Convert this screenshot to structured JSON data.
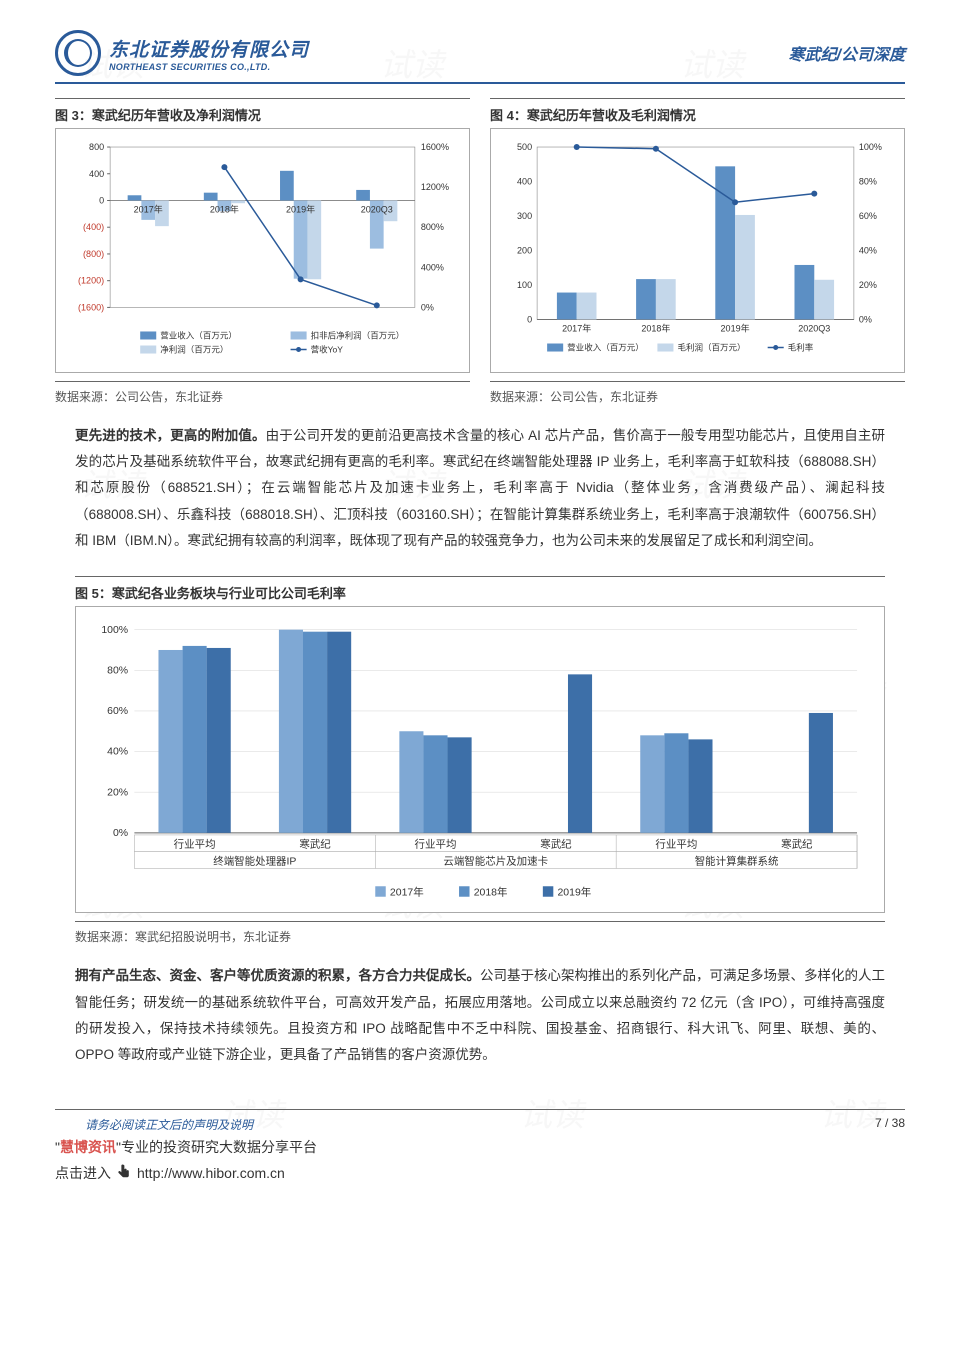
{
  "header": {
    "logo_cn": "东北证券股份有限公司",
    "logo_en": "NORTHEAST SECURITIES CO.,LTD.",
    "doc_title": "寒武纪/公司深度"
  },
  "fig3": {
    "title": "图 3：寒武纪历年营收及净利润情况",
    "categories": [
      "2017年",
      "2018年",
      "2019年",
      "2020Q3"
    ],
    "series_bar1": {
      "name": "营业收入（百万元）",
      "values": [
        78,
        117,
        444,
        158
      ],
      "color": "#5c8fc4"
    },
    "series_bar2": {
      "name": "扣非后净利润（百万元）",
      "values": [
        -290,
        -160,
        -1170,
        -720
      ],
      "color": "#9cbde0"
    },
    "series_bar3": {
      "name": "净利润（百万元）",
      "values": [
        -384,
        -41,
        -1179,
        -310
      ],
      "color": "#c4d7ea"
    },
    "series_line": {
      "name": "营收YoY",
      "values": [
        null,
        1400,
        280,
        20
      ],
      "color": "#2a5a99"
    },
    "y_left": {
      "min": -1600,
      "max": 800,
      "step": 400
    },
    "y_right": {
      "min": 0,
      "max": 1600,
      "step": 400,
      "suffix": "%"
    },
    "source": "数据来源：公司公告，东北证券"
  },
  "fig4": {
    "title": "图 4：寒武纪历年营收及毛利润情况",
    "categories": [
      "2017年",
      "2018年",
      "2019年",
      "2020Q3"
    ],
    "series_bar1": {
      "name": "营业收入（百万元）",
      "values": [
        78,
        117,
        444,
        158
      ],
      "color": "#5c8fc4"
    },
    "series_bar2": {
      "name": "毛利润（百万元）",
      "values": [
        78,
        117,
        303,
        115
      ],
      "color": "#c4d7ea"
    },
    "series_line": {
      "name": "毛利率",
      "values": [
        100,
        99,
        68,
        73
      ],
      "color": "#2a5a99"
    },
    "y_left": {
      "min": 0,
      "max": 500,
      "step": 100
    },
    "y_right": {
      "min": 0,
      "max": 100,
      "step": 20,
      "suffix": "%"
    },
    "source": "数据来源：公司公告，东北证券"
  },
  "para1": {
    "bold": "更先进的技术，更高的附加值。",
    "text": "由于公司开发的更前沿更高技术含量的核心 AI 芯片产品，售价高于一般专用型功能芯片，且使用自主研发的芯片及基础系统软件平台，故寒武纪拥有更高的毛利率。寒武纪在终端智能处理器 IP 业务上，毛利率高于虹软科技（688088.SH）和芯原股份（688521.SH）；在云端智能芯片及加速卡业务上，毛利率高于 Nvidia（整体业务，含消费级产品）、澜起科技（688008.SH）、乐鑫科技（688018.SH）、汇顶科技（603160.SH）；在智能计算集群系统业务上，毛利率高于浪潮软件（600756.SH）和 IBM（IBM.N）。寒武纪拥有较高的利润率，既体现了现有产品的较强竞争力，也为公司未来的发展留足了成长和利润空间。"
  },
  "fig5": {
    "title": "图 5：寒武纪各业务板块与行业可比公司毛利率",
    "groups": [
      "终端智能处理器IP",
      "云端智能芯片及加速卡",
      "智能计算集群系统"
    ],
    "sub_cats": [
      "行业平均",
      "寒武纪"
    ],
    "years": [
      "2017年",
      "2018年",
      "2019年"
    ],
    "colors": [
      "#7fa8d4",
      "#5c8fc4",
      "#3d6fa8"
    ],
    "data": [
      [
        [
          90,
          92,
          91
        ],
        [
          100,
          99,
          99
        ]
      ],
      [
        [
          50,
          48,
          47
        ],
        [
          0,
          0,
          78
        ]
      ],
      [
        [
          48,
          49,
          46
        ],
        [
          0,
          0,
          59
        ]
      ]
    ],
    "y": {
      "min": 0,
      "max": 100,
      "step": 20,
      "suffix": "%"
    },
    "source": "数据来源：寒武纪招股说明书，东北证券"
  },
  "para2": {
    "bold": "拥有产品生态、资金、客户等优质资源的积累，各方合力共促成长。",
    "text": "公司基于核心架构推出的系列化产品，可满足多场景、多样化的人工智能任务；研发统一的基础系统软件平台，可高效开发产品，拓展应用落地。公司成立以来总融资约 72 亿元（含 IPO），可维持高强度的研发投入，保持技术持续领先。且投资方和 IPO 战略配售中不乏中科院、国投基金、招商银行、科大讯飞、阿里、联想、美的、OPPO 等政府或产业链下游企业，更具备了产品销售的客户资源优势。"
  },
  "footer": {
    "disclaimer": "请务必阅读正文后的声明及说明",
    "page": "7 / 38",
    "promo1_quote": "\"",
    "promo1_hb": "慧博资讯",
    "promo1_rest": "\"专业的投资研究大数据分享平台",
    "promo2_text": "点击进入",
    "promo2_url": "http://www.hibor.com.cn"
  }
}
